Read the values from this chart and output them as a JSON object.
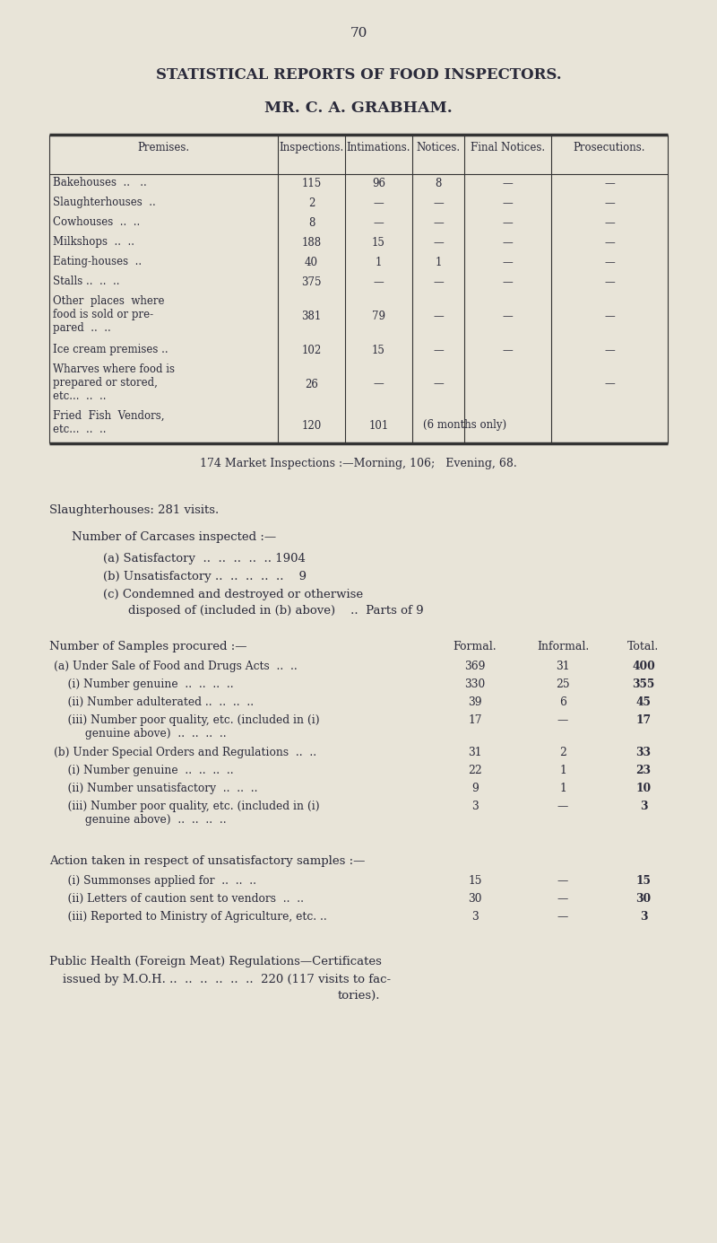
{
  "bg_color": "#e8e4d8",
  "text_color": "#2a2a3a",
  "page_number": "70",
  "title1": "STATISTICAL REPORTS OF FOOD INSPECTORS.",
  "title2": "MR. C. A. GRABHAM.",
  "market_line": "174 Market Inspections :—Morning, 106;   Evening, 68.",
  "slaughter_line": "Slaughterhouses: 281 visits.",
  "carcases_header": "Number of Carcases inspected :—",
  "samples_header": "Number of Samples procured :—",
  "action_header": "Action taken in respect of unsatisfactory samples :—",
  "public_health_line1": "Public Health (Foreign Meat) Regulations—Certificates",
  "public_health_line2": "    issued by M.O.H. ..  ..  ..  ..  ..  ..  220 (117 visits to fac-",
  "public_health_line3": "                                                               tories)."
}
